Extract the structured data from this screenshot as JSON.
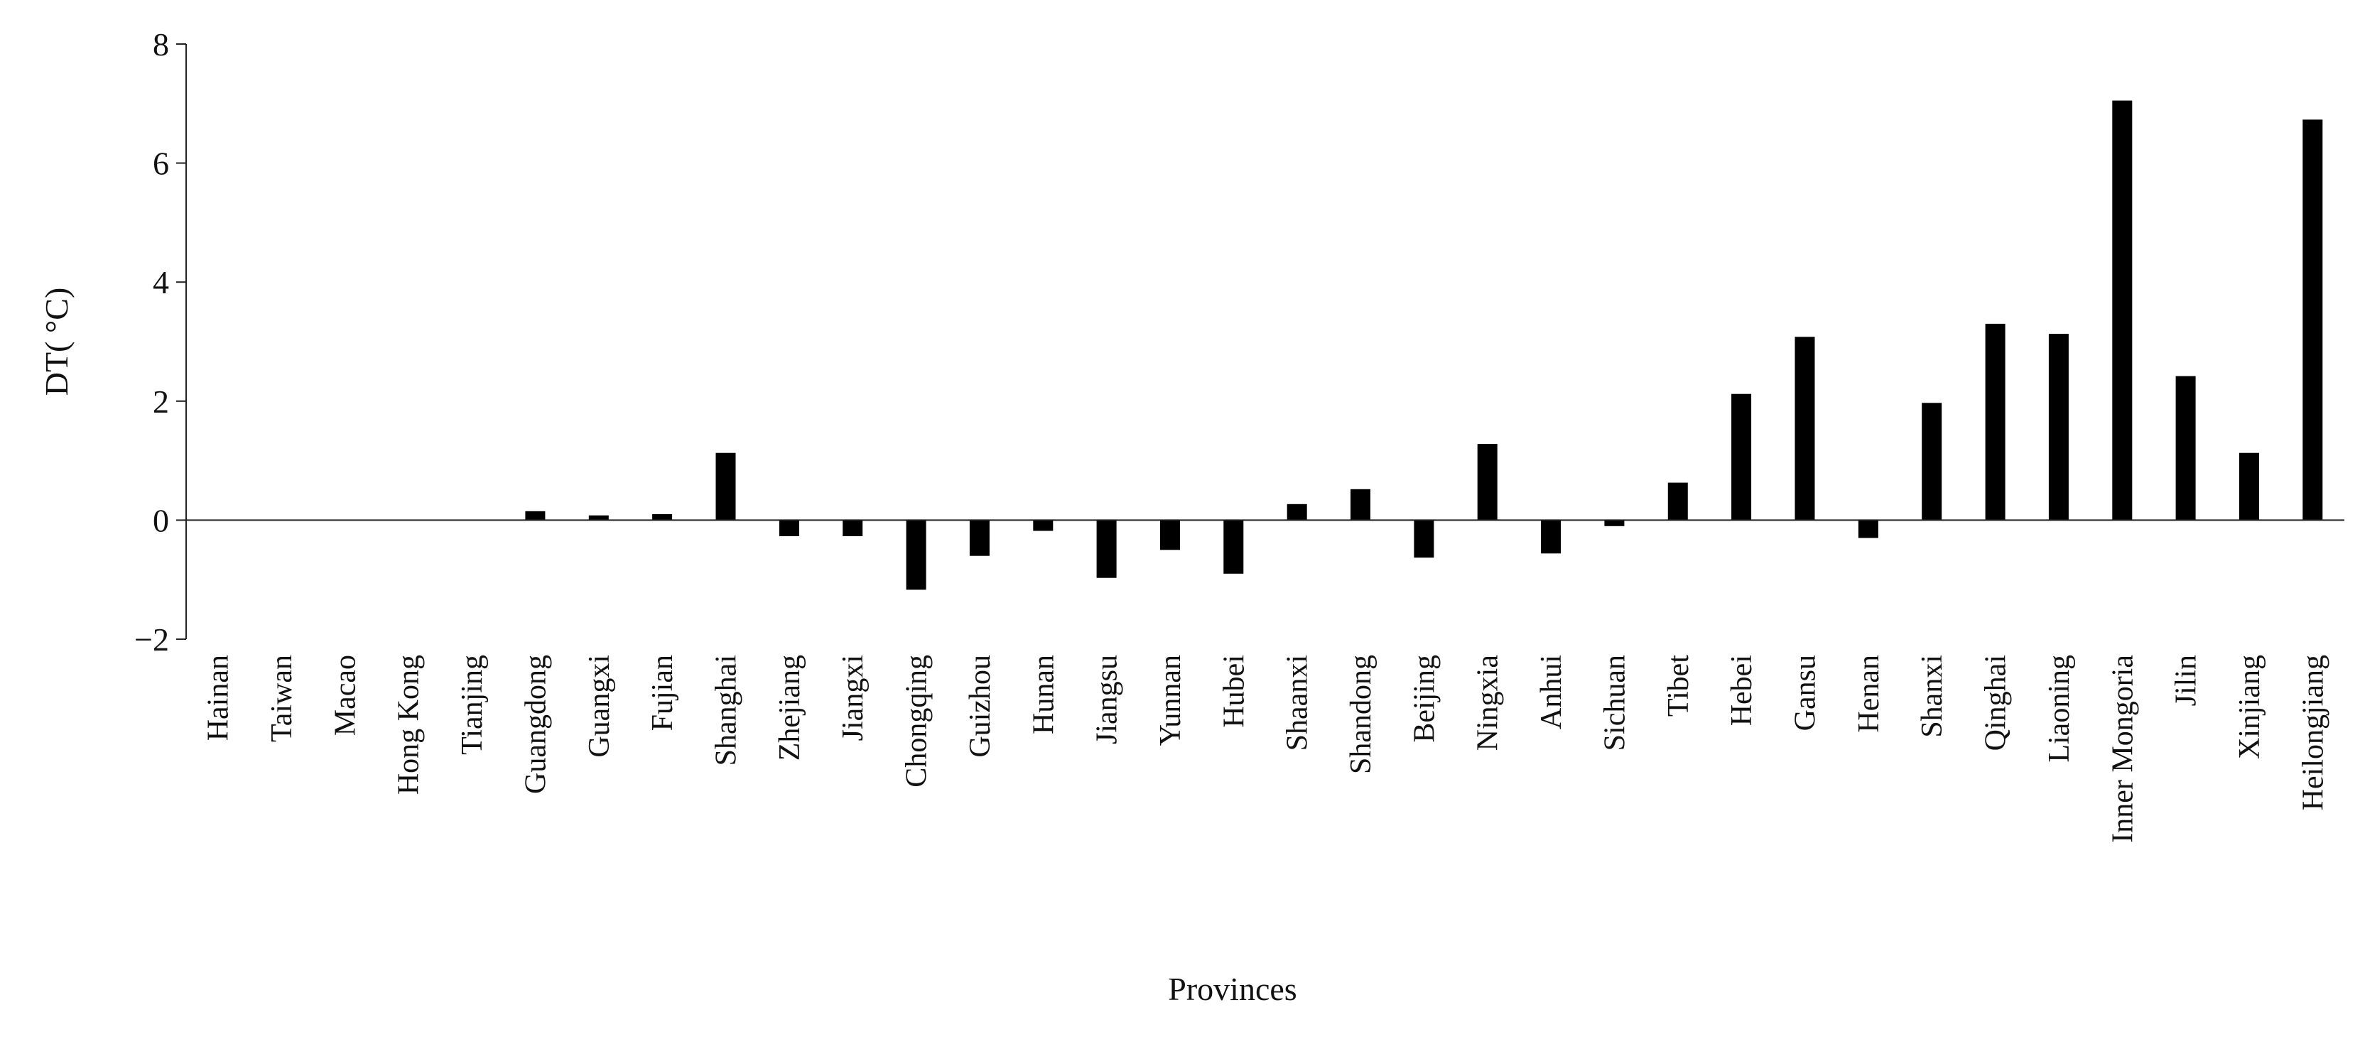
{
  "chart_data": {
    "type": "bar",
    "title": "",
    "xlabel": "Provinces",
    "ylabel": "DT( °C)",
    "ylim": [
      -2,
      8
    ],
    "yticks": [
      -2,
      0,
      2,
      4,
      6,
      8
    ],
    "grid": false,
    "legend": "none",
    "bar_color": "#000000",
    "categories": [
      "Hainan",
      "Taiwan",
      "Macao",
      "Hong Kong",
      "Tianjing",
      "Guangdong",
      "Guangxi",
      "Fujian",
      "Shanghai",
      "Zhejiang",
      "Jiangxi",
      "Chongqing",
      "Guizhou",
      "Hunan",
      "Jiangsu",
      "Yunnan",
      "Hubei",
      "Shaanxi",
      "Shandong",
      "Beijing",
      "Ningxia",
      "Anhui",
      "Sichuan",
      "Tibet",
      "Hebei",
      "Gansu",
      "Henan",
      "Shanxi",
      "Qinghai",
      "Liaoning",
      "Inner Mongoria",
      "Jilin",
      "Xinjiang",
      "Heilongjiang"
    ],
    "values": [
      0,
      0,
      0,
      0,
      0,
      0.15,
      0.08,
      0.1,
      1.13,
      -0.27,
      -0.27,
      -1.17,
      -0.6,
      -0.18,
      -0.97,
      -0.5,
      -0.9,
      0.27,
      0.52,
      -0.63,
      1.28,
      -0.56,
      -0.1,
      0.63,
      2.12,
      3.08,
      -0.3,
      1.97,
      3.3,
      3.13,
      7.05,
      2.42,
      1.13,
      6.73
    ]
  }
}
